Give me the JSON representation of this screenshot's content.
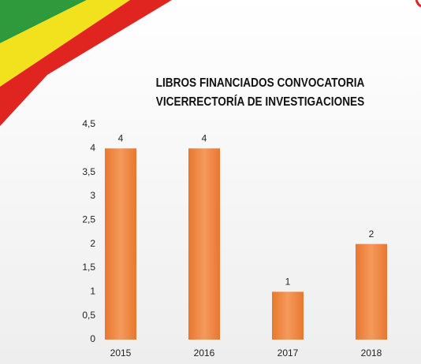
{
  "chart_data": {
    "type": "bar",
    "title": "LIBROS FINANCIADOS CONVOCATORIA VICERRECTORÍA DE INVESTIGACIONES",
    "categories": [
      "2015",
      "2016",
      "2017",
      "2018"
    ],
    "values": [
      4,
      4,
      1,
      2
    ],
    "color": "#f07f3c",
    "ylim": [
      0,
      4.5
    ],
    "yticks": [
      0,
      {
        "value": 0.5,
        "label": "0,5"
      },
      1,
      {
        "value": 1.5,
        "label": "1,5"
      },
      2,
      {
        "value": 2.5,
        "label": "2,5"
      },
      3,
      {
        "value": 3.5,
        "label": "3,5"
      },
      4,
      {
        "value": 4.5,
        "label": "4,5"
      }
    ]
  }
}
